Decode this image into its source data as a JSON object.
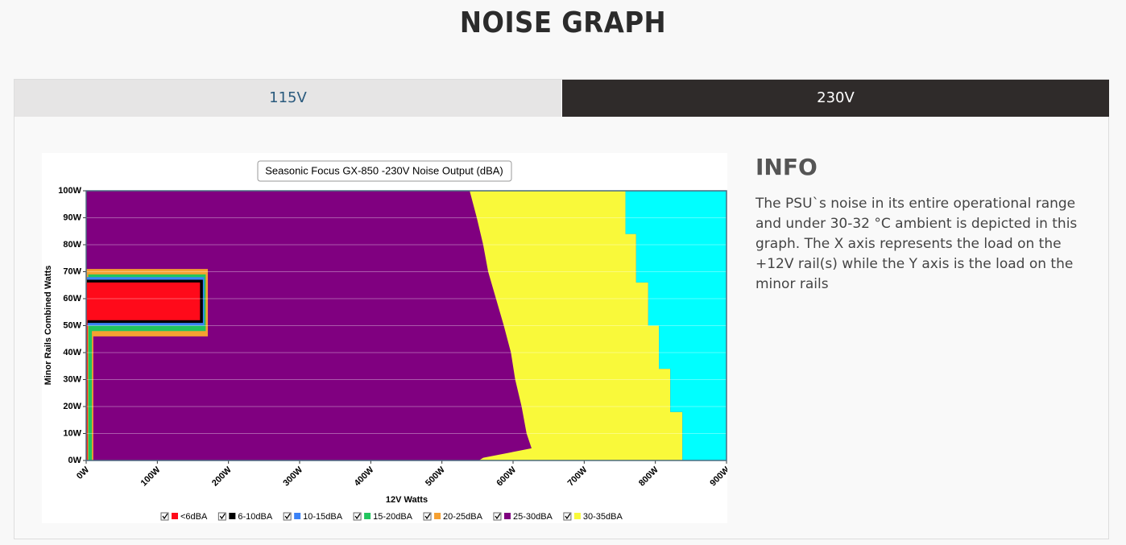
{
  "header": {
    "title": "NOISE GRAPH"
  },
  "tabs": [
    {
      "label": "115V",
      "active": false
    },
    {
      "label": "230V",
      "active": true
    }
  ],
  "info": {
    "title": "INFO",
    "text": "The PSU`s noise in its entire operational range and under 30-32 °C ambient is depicted in this graph. The X axis represents the load on the +12V rail(s) while the Y axis is the load on the minor rails"
  },
  "chart_data": {
    "type": "area-map",
    "title": "Seasonic Focus GX-850 -230V Noise Output (dBA)",
    "x_label": "12V Watts",
    "y_label": "Minor Rails Combined Watts",
    "xlim": [
      0,
      900
    ],
    "ylim": [
      0,
      100
    ],
    "xticks": [
      {
        "value": 0,
        "label": "0W"
      },
      {
        "value": 100,
        "label": "100W"
      },
      {
        "value": 200,
        "label": "200W"
      },
      {
        "value": 300,
        "label": "300W"
      },
      {
        "value": 400,
        "label": "400W"
      },
      {
        "value": 500,
        "label": "500W"
      },
      {
        "value": 600,
        "label": "600W"
      },
      {
        "value": 700,
        "label": "700W"
      },
      {
        "value": 800,
        "label": "800W"
      },
      {
        "value": 900,
        "label": "900W"
      }
    ],
    "yticks": [
      {
        "value": 0,
        "label": "0W"
      },
      {
        "value": 10,
        "label": "10W"
      },
      {
        "value": 20,
        "label": "20W"
      },
      {
        "value": 30,
        "label": "30W"
      },
      {
        "value": 40,
        "label": "40W"
      },
      {
        "value": 50,
        "label": "50W"
      },
      {
        "value": 60,
        "label": "60W"
      },
      {
        "value": 70,
        "label": "70W"
      },
      {
        "value": 80,
        "label": "80W"
      },
      {
        "value": 90,
        "label": "90W"
      },
      {
        "value": 100,
        "label": "100W"
      }
    ],
    "grid": true,
    "series": [
      {
        "name": "25-30dBA",
        "color": "#800080",
        "x": [
          0,
          900,
          900,
          0
        ],
        "y": [
          0,
          0,
          100,
          100
        ]
      },
      {
        "name": "30-35dBA",
        "color": "#f9f93a",
        "x": [
          539,
          758,
          758,
          773,
          773,
          790,
          790,
          805,
          805,
          821,
          821,
          838,
          838,
          552,
          558,
          626,
          619,
          612,
          603,
          597,
          587,
          576,
          565,
          558,
          549
        ],
        "y": [
          100,
          100,
          84,
          84,
          66,
          66,
          50,
          50,
          34,
          34,
          18,
          18,
          0,
          0,
          1,
          4.5,
          10,
          20,
          30,
          40,
          50,
          60,
          70,
          80,
          90
        ]
      },
      {
        "color": "#00ffff",
        "x": [
          758,
          900,
          900,
          838,
          838,
          821,
          821,
          805,
          805,
          790,
          790,
          773,
          773,
          758
        ],
        "y": [
          100,
          100,
          0,
          0,
          18,
          18,
          34,
          34,
          50,
          50,
          66,
          66,
          84,
          84
        ]
      },
      {
        "name": "20-25dBA",
        "color": "#f5a031",
        "x": [
          0,
          10,
          10,
          171,
          171,
          0
        ],
        "y": [
          0,
          0,
          46,
          46,
          71,
          71
        ]
      },
      {
        "name": "15-20dBA",
        "color": "#22c55e",
        "x": [
          3,
          8,
          8,
          168,
          168,
          3
        ],
        "y": [
          0,
          0,
          48,
          48,
          69,
          69
        ]
      },
      {
        "name": "10-15dBA",
        "color": "#3b82f6",
        "x": [
          1,
          166,
          166,
          1
        ],
        "y": [
          50,
          50,
          68,
          68
        ]
      },
      {
        "name": "6-10dBA",
        "color": "#000000",
        "x": [
          1,
          164,
          164,
          1
        ],
        "y": [
          51,
          51,
          67,
          67
        ]
      },
      {
        "name": "<6dBA",
        "color": "#ff0a1a",
        "x": [
          0,
          2,
          2,
          160,
          160,
          0
        ],
        "y": [
          0,
          0,
          52,
          52,
          66,
          66
        ]
      }
    ],
    "legend_order": [
      7,
      6,
      5,
      4,
      3,
      0,
      1
    ]
  }
}
